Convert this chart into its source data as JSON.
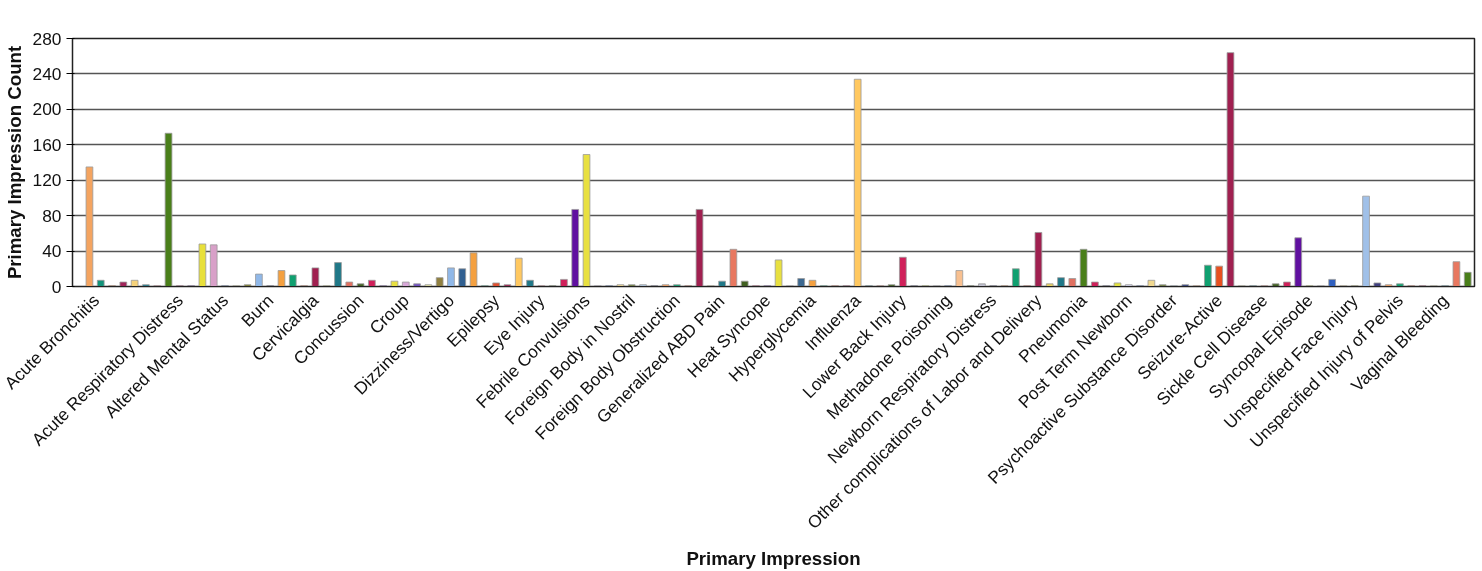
{
  "chart_data": {
    "type": "bar",
    "xlabel": "Primary Impression",
    "ylabel": "Primary Impression Count",
    "categories": [
      "Acute Bronchitis",
      null,
      null,
      null,
      null,
      null,
      null,
      null,
      "Acute Respiratory Distress",
      null,
      null,
      null,
      "Altered Mental Status",
      null,
      null,
      null,
      "Burn",
      null,
      null,
      null,
      "Cervicalgia",
      null,
      null,
      null,
      "Concussion",
      null,
      null,
      null,
      "Croup",
      null,
      null,
      null,
      "Dizziness/Vertigo",
      null,
      null,
      null,
      "Epilepsy",
      null,
      null,
      null,
      "Eye Injury",
      null,
      null,
      null,
      "Febrile Convulsions",
      null,
      null,
      null,
      "Foreign Body in Nostril",
      null,
      null,
      null,
      "Foreign Body Obstruction",
      null,
      null,
      null,
      "Generalized ABD Pain",
      null,
      null,
      null,
      "Heat Syncope",
      null,
      null,
      null,
      "Hyperglycemia",
      null,
      null,
      null,
      "Influenza",
      null,
      null,
      null,
      "Lower Back Injury",
      null,
      null,
      null,
      "Methadone Poisoning",
      null,
      null,
      null,
      "Newborn Respiratory Distress",
      null,
      null,
      null,
      "Other complications of Labor and Delivery",
      null,
      null,
      null,
      "Pneumonia",
      null,
      null,
      null,
      "Post Term Newborn",
      null,
      null,
      null,
      "Psychoactive Substance Disorder",
      null,
      null,
      null,
      "Seizure-Active",
      null,
      null,
      null,
      "Sickle Cell Disease",
      null,
      null,
      null,
      "Syncopal Episode",
      null,
      null,
      null,
      "Unspecified Face Injury",
      null,
      null,
      null,
      "Unspecified Injury of Pelvis",
      null,
      null,
      null,
      "Vaginal Bleeding",
      null,
      null
    ],
    "values": [
      135,
      7,
      1,
      5,
      7,
      2,
      1,
      173,
      1,
      1,
      48,
      47,
      1,
      1,
      2,
      14,
      1,
      18,
      13,
      1,
      21,
      1,
      27,
      5,
      3,
      7,
      1,
      6,
      5,
      3,
      2,
      10,
      21,
      20,
      38,
      1,
      4,
      2,
      32,
      7,
      1,
      1,
      8,
      87,
      149,
      1,
      1,
      2,
      2,
      2,
      1,
      2,
      2,
      1,
      87,
      1,
      6,
      42,
      6,
      1,
      1,
      30,
      1,
      9,
      7,
      1,
      1,
      1,
      234,
      1,
      1,
      2,
      33,
      1,
      1,
      1,
      1,
      18,
      1,
      3,
      1,
      1,
      20,
      1,
      61,
      3,
      10,
      9,
      42,
      5,
      1,
      4,
      2,
      1,
      7,
      2,
      1,
      2,
      1,
      24,
      23,
      264,
      1,
      1,
      1,
      3,
      5,
      55,
      1,
      1,
      8,
      1,
      1,
      102,
      4,
      2,
      3,
      1,
      1,
      1,
      1,
      28,
      16
    ],
    "colors": [
      "#f4a460",
      "#12937a",
      "#e8702a",
      "#a1245a",
      "#f5d27a",
      "#1f7a8c",
      "#e06c75",
      "#4a7f1a",
      "#a0205a",
      "#5a2090",
      "#e8e03a",
      "#d8a0c8",
      "#2850a0",
      "#d8d890",
      "#808030",
      "#90b8e8",
      "#303060",
      "#f4a040",
      "#10a070",
      "#e06030",
      "#a02050",
      "#d8d870",
      "#207888",
      "#e07060",
      "#406020",
      "#d0205a",
      "#6020a0",
      "#e8e040",
      "#d8a8d8",
      "#7050c0",
      "#e0e0a0",
      "#908040",
      "#90b8e8",
      "#305f90",
      "#f4a040",
      "#10a070",
      "#e05030",
      "#a02050",
      "#ffc860",
      "#207888",
      "#e07080",
      "#406020",
      "#d0205a",
      "#6010a0",
      "#e8e040",
      "#d8c8e8",
      "#3060c0",
      "#f0d890",
      "#708040",
      "#b0c8e0",
      "#303060",
      "#f4a060",
      "#10a070",
      "#e05030",
      "#a02050",
      "#e8e0a0",
      "#207888",
      "#e87860",
      "#406020",
      "#d0205a",
      "#6020a0",
      "#e8e040",
      "#d8d8e8",
      "#3c6890",
      "#f4a040",
      "#10a070",
      "#e05030",
      "#a02050",
      "#ffc860",
      "#207888",
      "#e07060",
      "#406020",
      "#d0205a",
      "#303060",
      "#c0d040",
      "#d0d0e0",
      "#3060c0",
      "#f8c090",
      "#406020",
      "#c0c0d0",
      "#303060",
      "#e08040",
      "#10a070",
      "#e05030",
      "#a02050",
      "#e8d060",
      "#207888",
      "#e07060",
      "#4a7f1a",
      "#d0205a",
      "#303060",
      "#e0e040",
      "#d0d0e8",
      "#3060c0",
      "#f0d890",
      "#708040",
      "#b0c8e0",
      "#304080",
      "#f4a060",
      "#10a070",
      "#e85020",
      "#a02050",
      "#e8e0a0",
      "#207888",
      "#e07060",
      "#406020",
      "#d0205a",
      "#6010a0",
      "#c0d040",
      "#d0d0e0",
      "#3060c0",
      "#f0d890",
      "#a0a040",
      "#a0c0e8",
      "#404080",
      "#f4a060",
      "#10a070",
      "#e05030",
      "#a02050",
      "#e8e0a0",
      "#207888",
      "#e87860",
      "#4a7f1a"
    ],
    "ylim": [
      0,
      280
    ],
    "yticks": [
      0,
      40,
      80,
      120,
      160,
      200,
      240,
      280
    ],
    "grid": "y"
  }
}
